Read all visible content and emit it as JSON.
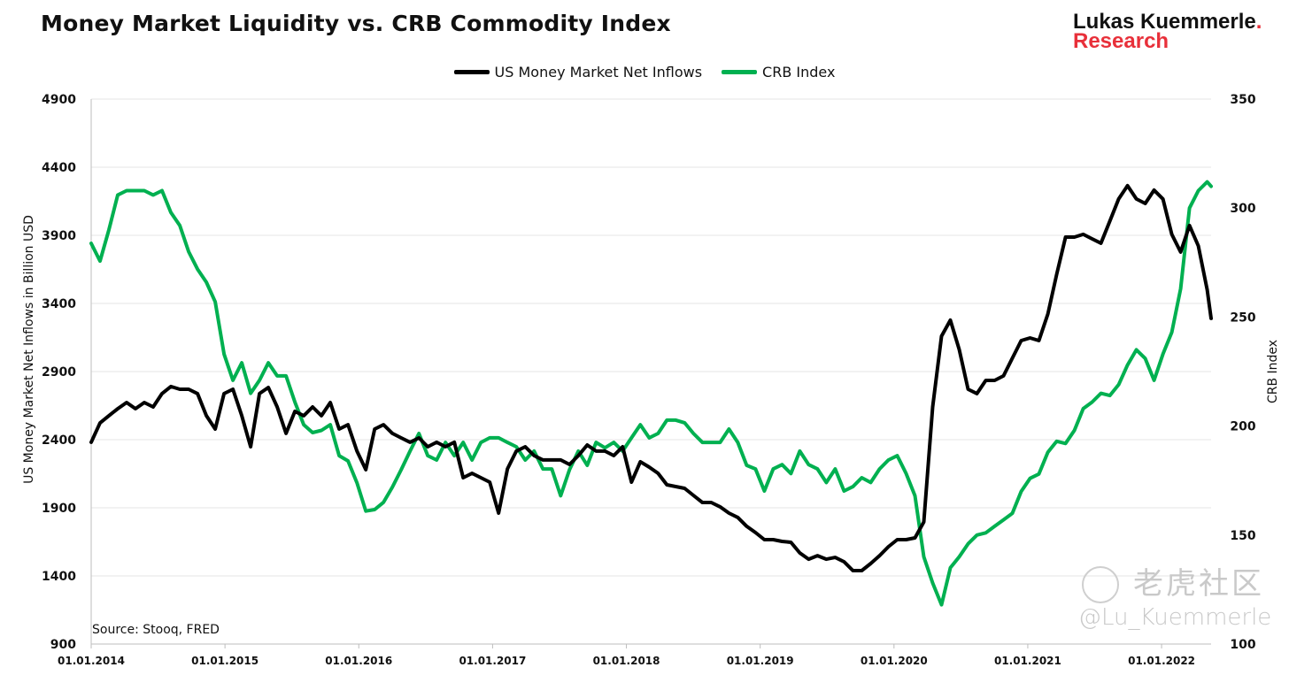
{
  "title": "Money Market Liquidity vs. CRB Commodity Index",
  "logo": {
    "line1": "Lukas Kuemmerle",
    "dot": ".",
    "line2": "Research"
  },
  "source": "Source: Stooq, FRED",
  "watermark": {
    "text": "老虎社区",
    "handle": "@Lu_Kuemmerle"
  },
  "colors": {
    "money_market": "#000000",
    "crb": "#00b050",
    "grid": "#e6e6e6"
  },
  "chart_data": {
    "type": "line",
    "title": "Money Market Liquidity vs. CRB Commodity Index",
    "x_start_year": 2014.0,
    "x_step_years": 0.0662,
    "xlim": [
      2014.0,
      2022.41
    ],
    "x_ticks": [
      2014,
      2015,
      2016,
      2017,
      2018,
      2019,
      2020,
      2021,
      2022
    ],
    "x_tick_labels": [
      "01.01.2014",
      "01.01.2015",
      "01.01.2016",
      "01.01.2017",
      "01.01.2018",
      "01.01.2019",
      "01.01.2020",
      "01.01.2021",
      "01.01.2022"
    ],
    "ylabel_left": "US Money Market Net Inflows in Billion USD",
    "ylabel_right": "CRB Index",
    "ylim_left": [
      900,
      4900
    ],
    "ylim_right": [
      100,
      350
    ],
    "y_ticks_left": [
      900,
      1400,
      1900,
      2400,
      2900,
      3400,
      3900,
      4400,
      4900
    ],
    "y_ticks_right": [
      100,
      150,
      200,
      250,
      300,
      350
    ],
    "grid": true,
    "legend_position": "top-center",
    "series": [
      {
        "name": "US Money Market Net Inflows",
        "axis": "left",
        "values": [
          2381,
          2523,
          2576,
          2627,
          2673,
          2627,
          2673,
          2640,
          2738,
          2790,
          2770,
          2770,
          2738,
          2576,
          2478,
          2738,
          2770,
          2576,
          2348,
          2738,
          2783,
          2640,
          2446,
          2608,
          2576,
          2640,
          2576,
          2673,
          2478,
          2510,
          2316,
          2180,
          2478,
          2510,
          2446,
          2413,
          2381,
          2413,
          2348,
          2381,
          2348,
          2381,
          2121,
          2153,
          2121,
          2088,
          1861,
          2186,
          2316,
          2348,
          2283,
          2251,
          2251,
          2251,
          2218,
          2283,
          2361,
          2316,
          2316,
          2283,
          2348,
          2088,
          2238,
          2199,
          2153,
          2069,
          2056,
          2043,
          1991,
          1939,
          1939,
          1907,
          1861,
          1829,
          1764,
          1718,
          1666,
          1666,
          1653,
          1647,
          1569,
          1523,
          1549,
          1523,
          1536,
          1504,
          1439,
          1439,
          1491,
          1549,
          1614,
          1666,
          1666,
          1679,
          1796,
          2640,
          3160,
          3277,
          3062,
          2770,
          2738,
          2835,
          2835,
          2868,
          2998,
          3127,
          3147,
          3127,
          3322,
          3614,
          3887,
          3887,
          3907,
          3874,
          3842,
          4004,
          4167,
          4264,
          4167,
          4134,
          4232,
          4167,
          3907,
          3777,
          3972,
          3822,
          3500,
          3290
        ]
      },
      {
        "name": "CRB Index",
        "axis": "right",
        "values": [
          283.8,
          275.7,
          290,
          306,
          308,
          308,
          308,
          306,
          308,
          298,
          292,
          280,
          272,
          266,
          257,
          233,
          221,
          229,
          215,
          221,
          229,
          223,
          223,
          211,
          200.6,
          197,
          198,
          200.6,
          186.4,
          184,
          174,
          161,
          161.7,
          165,
          172,
          180,
          188.5,
          196.6,
          186.4,
          184.4,
          192.5,
          186.4,
          192.5,
          184.4,
          192.5,
          194.6,
          194.6,
          192.5,
          190.5,
          184.4,
          188.5,
          180.3,
          180.3,
          168,
          180,
          188.5,
          182,
          192.5,
          190,
          192.5,
          188.5,
          194.6,
          200.6,
          194.6,
          196.6,
          202.7,
          202.7,
          201.5,
          196.6,
          192.5,
          192.5,
          192.5,
          198.6,
          192.5,
          182,
          180.3,
          170.2,
          180.3,
          182.3,
          178.2,
          188.5,
          182.3,
          180.3,
          174.1,
          180.3,
          170.2,
          172.2,
          176.3,
          174.1,
          180.3,
          184.4,
          186.4,
          178.2,
          168,
          140,
          128,
          118,
          135,
          140,
          146,
          150,
          151,
          154,
          157,
          160,
          170,
          176,
          178,
          188,
          193,
          192,
          198,
          208,
          211,
          215,
          214,
          219,
          228,
          235,
          231,
          221,
          233,
          243,
          263,
          300,
          308,
          312,
          310
        ]
      }
    ]
  }
}
